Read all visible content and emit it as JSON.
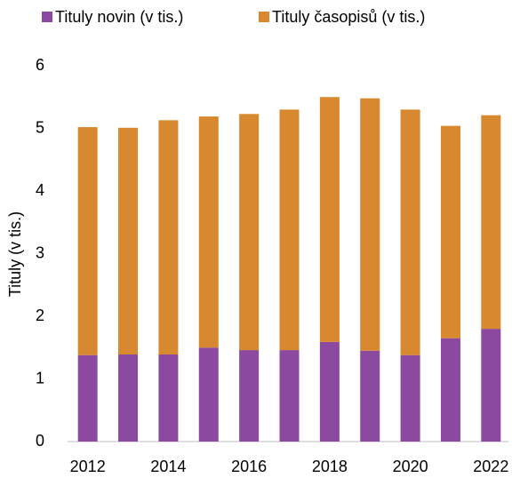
{
  "chart_data": {
    "type": "stacked_bar",
    "y_label": "Tituly (v tis.)",
    "categories": [
      "2012",
      null,
      "2014",
      null,
      "2016",
      null,
      "2018",
      null,
      "2020",
      null,
      "2022"
    ],
    "series": [
      {
        "name": "Tituly novin (v tis.)",
        "color": "#8b4a9f",
        "values": [
          1.38,
          1.39,
          1.39,
          1.5,
          1.46,
          1.46,
          1.59,
          1.45,
          1.38,
          1.65,
          1.8
        ]
      },
      {
        "name": "Tituly časopisů (v tis.)",
        "color": "#d8882f",
        "values": [
          3.64,
          3.62,
          3.74,
          3.69,
          3.77,
          3.84,
          3.91,
          4.03,
          3.92,
          3.39,
          3.41
        ]
      }
    ],
    "ylim": [
      0,
      6
    ],
    "yticks": [
      0,
      1,
      2,
      3,
      4,
      5,
      6
    ],
    "grid": false,
    "legend": "top"
  }
}
